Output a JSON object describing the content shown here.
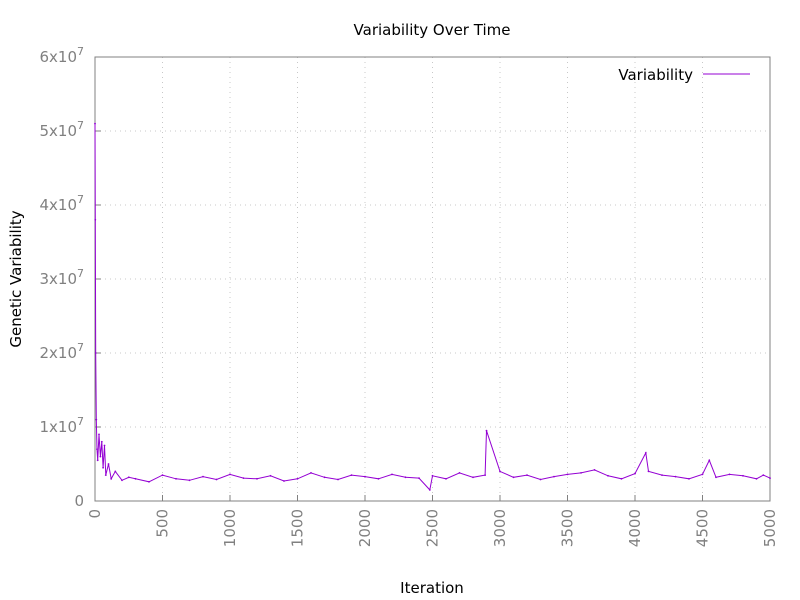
{
  "chart_data": {
    "type": "line",
    "title": "Variability Over Time",
    "xlabel": "Iteration",
    "ylabel": "Genetic Variability",
    "xlim": [
      0,
      5000
    ],
    "ylim": [
      0,
      60000000
    ],
    "x_ticks": [
      "0",
      "500",
      "1000",
      "1500",
      "2000",
      "2500",
      "3000",
      "3500",
      "4000",
      "4500",
      "5000"
    ],
    "y_ticks": [
      {
        "value": 0,
        "mantissa": "0",
        "exp": ""
      },
      {
        "value": 10000000,
        "mantissa": "1x10",
        "exp": "7"
      },
      {
        "value": 20000000,
        "mantissa": "2x10",
        "exp": "7"
      },
      {
        "value": 30000000,
        "mantissa": "3x10",
        "exp": "7"
      },
      {
        "value": 40000000,
        "mantissa": "4x10",
        "exp": "7"
      },
      {
        "value": 50000000,
        "mantissa": "5x10",
        "exp": "7"
      },
      {
        "value": 60000000,
        "mantissa": "6x10",
        "exp": "7"
      }
    ],
    "grid": true,
    "legend_position": "top-right",
    "series": [
      {
        "name": "Variability",
        "color": "#9400d3",
        "x": [
          0,
          2,
          5,
          10,
          15,
          20,
          30,
          40,
          50,
          60,
          70,
          80,
          100,
          120,
          150,
          200,
          250,
          300,
          400,
          500,
          600,
          700,
          800,
          900,
          1000,
          1100,
          1200,
          1300,
          1400,
          1500,
          1600,
          1700,
          1800,
          1900,
          2000,
          2100,
          2200,
          2300,
          2400,
          2480,
          2500,
          2600,
          2700,
          2800,
          2890,
          2900,
          3000,
          3100,
          3200,
          3300,
          3400,
          3500,
          3600,
          3700,
          3800,
          3900,
          4000,
          4080,
          4100,
          4200,
          4300,
          4400,
          4500,
          4550,
          4600,
          4700,
          4800,
          4900,
          4950,
          5000
        ],
        "y": [
          51000000,
          38000000,
          20000000,
          11000000,
          7000000,
          5500000,
          9000000,
          6000000,
          8000000,
          4500000,
          7500000,
          3500000,
          5000000,
          3000000,
          4000000,
          2800000,
          3200000,
          3000000,
          2600000,
          3500000,
          3000000,
          2800000,
          3300000,
          2900000,
          3600000,
          3100000,
          3000000,
          3400000,
          2700000,
          3000000,
          3800000,
          3200000,
          2900000,
          3500000,
          3300000,
          3000000,
          3600000,
          3200000,
          3100000,
          1500000,
          3400000,
          3000000,
          3800000,
          3200000,
          3500000,
          9500000,
          4000000,
          3200000,
          3500000,
          2900000,
          3300000,
          3600000,
          3800000,
          4200000,
          3400000,
          3000000,
          3700000,
          6500000,
          4000000,
          3500000,
          3300000,
          3000000,
          3600000,
          5500000,
          3200000,
          3600000,
          3400000,
          3000000,
          3500000,
          3100000
        ]
      }
    ]
  }
}
